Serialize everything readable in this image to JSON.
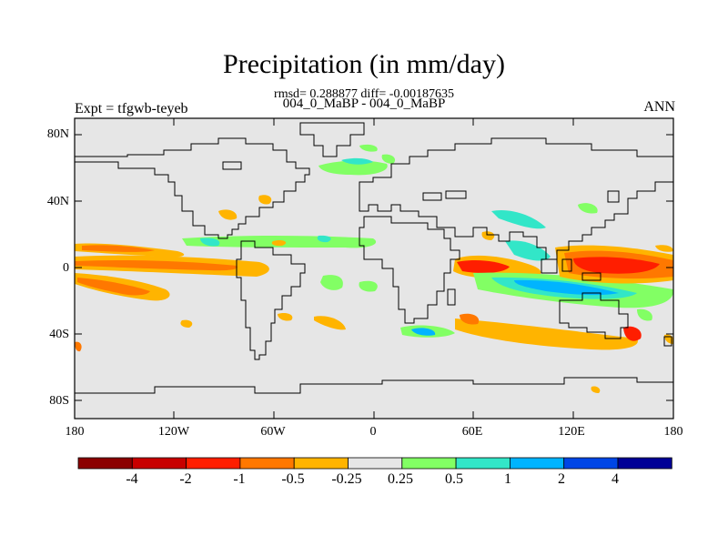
{
  "header": {
    "title": "Precipitation (in mm/day)",
    "stats": "rmsd= 0.288877 diff= -0.00187635",
    "subtitle": "004_0_MaBP - 004_0_MaBP",
    "experiment": "Expt = tfgwb-teyeb",
    "season": "ANN"
  },
  "axes": {
    "y_ticks": [
      "80N",
      "40N",
      "0",
      "40S",
      "80S"
    ],
    "x_ticks": [
      "180",
      "120W",
      "60W",
      "0",
      "60E",
      "120E",
      "180"
    ]
  },
  "colorbar": {
    "colors": [
      "#8b0000",
      "#c80000",
      "#ff1e00",
      "#ff7800",
      "#ffb400",
      "#e6e6e6",
      "#82ff64",
      "#32e6c8",
      "#00b4ff",
      "#0046e6",
      "#000096"
    ],
    "labels": [
      "-4",
      "-2",
      "-1",
      "-0.5",
      "-0.25",
      "0.25",
      "0.5",
      "1",
      "2",
      "4"
    ]
  },
  "colors": {
    "neutral": "#e6e6e6",
    "orange": "#ffb400",
    "dark_orange": "#ff7800",
    "red": "#ff1e00",
    "green": "#82ff64",
    "cyan": "#32e6c8",
    "blue": "#00b4ff",
    "dark_blue": "#0046e6"
  }
}
